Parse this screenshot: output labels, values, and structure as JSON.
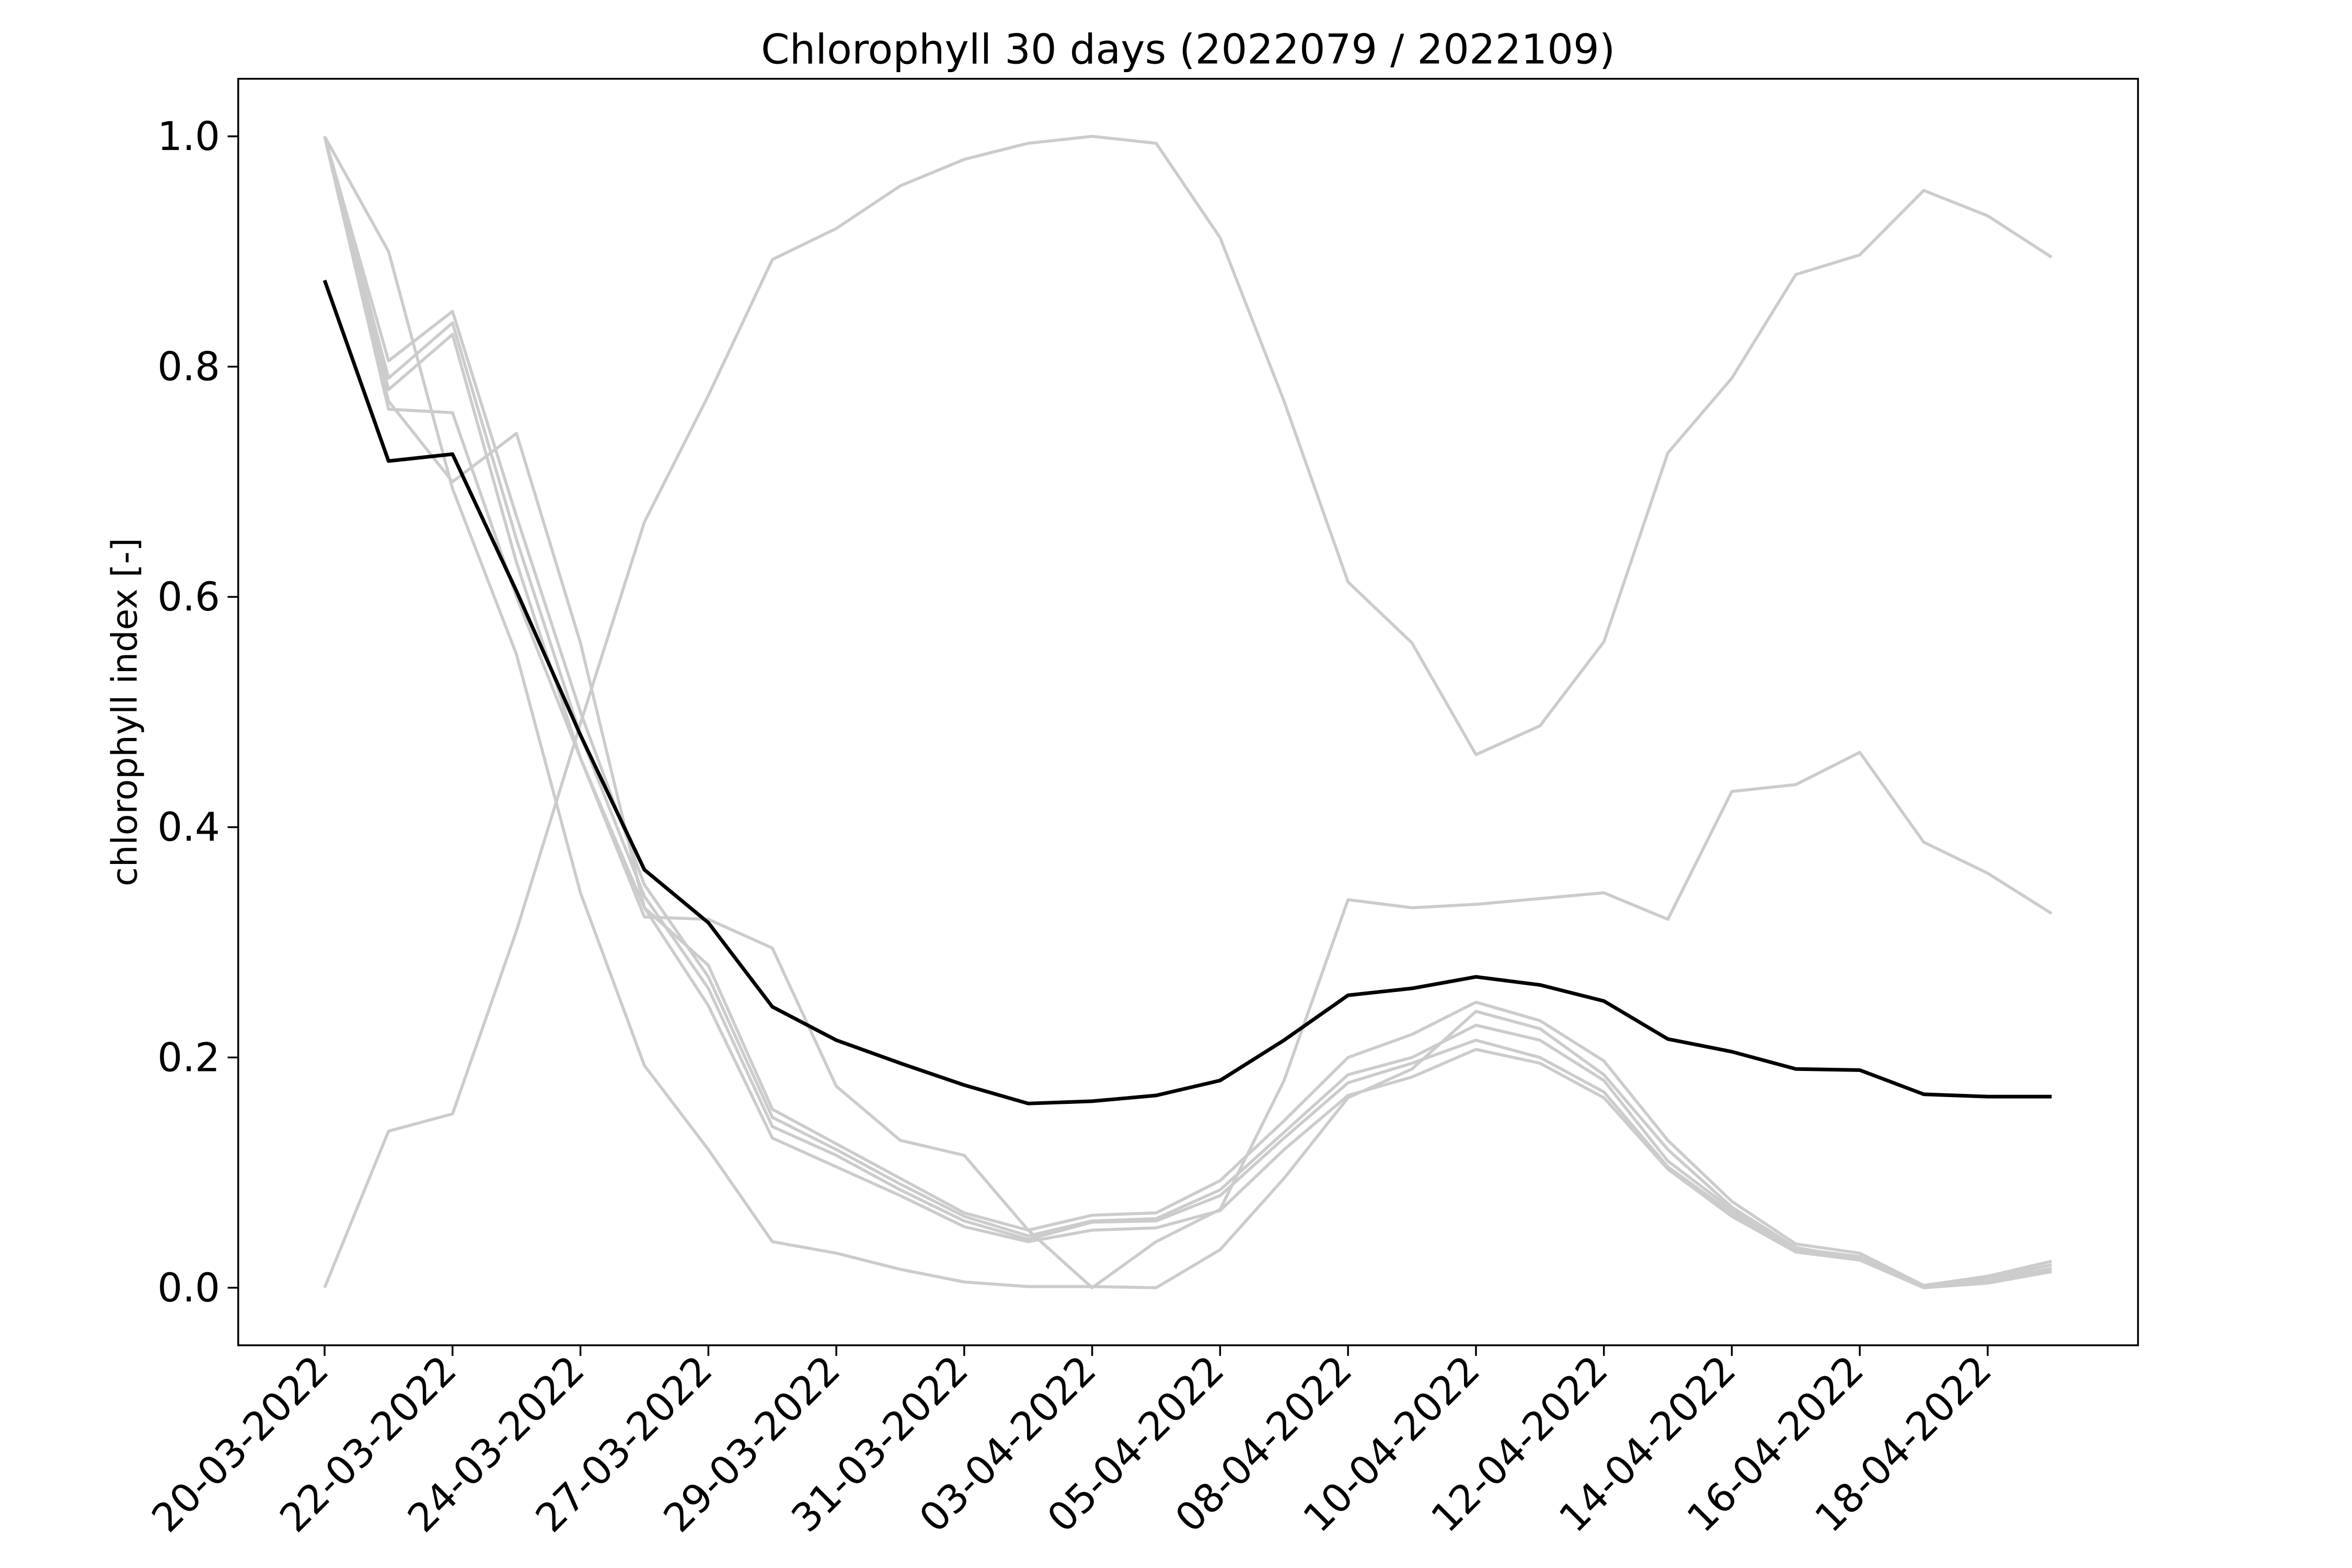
{
  "chart_data": {
    "type": "line",
    "title": "Chlorophyll 30 days (2022079 / 2022109)",
    "y_label": "chlorophyll index [-]",
    "x": [
      0,
      1,
      2,
      3,
      4,
      5,
      6,
      7,
      8,
      9,
      10,
      11,
      12,
      13,
      14,
      15,
      16,
      17,
      18,
      19,
      20,
      21,
      22,
      23,
      24,
      25,
      26,
      27
    ],
    "xlim": [
      -1.35,
      28.35
    ],
    "xticks": [
      {
        "value": 0,
        "label": "20-03-2022"
      },
      {
        "value": 2,
        "label": "22-03-2022"
      },
      {
        "value": 4,
        "label": "24-03-2022"
      },
      {
        "value": 6,
        "label": "27-03-2022"
      },
      {
        "value": 8,
        "label": "29-03-2022"
      },
      {
        "value": 10,
        "label": "31-03-2022"
      },
      {
        "value": 12,
        "label": "03-04-2022"
      },
      {
        "value": 14,
        "label": "05-04-2022"
      },
      {
        "value": 16,
        "label": "08-04-2022"
      },
      {
        "value": 18,
        "label": "10-04-2022"
      },
      {
        "value": 20,
        "label": "12-04-2022"
      },
      {
        "value": 22,
        "label": "14-04-2022"
      },
      {
        "value": 24,
        "label": "16-04-2022"
      },
      {
        "value": 26,
        "label": "18-04-2022"
      }
    ],
    "ylim": [
      -0.05,
      1.05
    ],
    "yticks": [
      {
        "value": 0,
        "label": "0.0"
      },
      {
        "value": 0.2,
        "label": "0.2"
      },
      {
        "value": 0.4,
        "label": "0.4"
      },
      {
        "value": 0.6,
        "label": "0.6"
      },
      {
        "value": 0.8,
        "label": "0.8"
      },
      {
        "value": 1,
        "label": "1.0"
      }
    ],
    "grid": false,
    "series": [
      {
        "color": "#cccccc",
        "values": [
          0,
          0.136,
          0.151,
          0.31,
          0.49,
          0.665,
          0.775,
          0.893,
          0.92,
          0.957,
          0.98,
          0.994,
          1.0,
          0.994,
          0.912,
          0.77,
          0.613,
          0.56,
          0.463,
          0.488,
          0.561,
          0.725,
          0.79,
          0.88,
          0.897,
          0.953,
          0.931,
          0.895
        ]
      },
      {
        "color": "#cccccc",
        "values": [
          1.0,
          0.763,
          0.76,
          0.6,
          0.46,
          0.322,
          0.32,
          0.295,
          0.175,
          0.128,
          0.115,
          0.05,
          0.0,
          0.04,
          0.068,
          0.18,
          0.337,
          0.33,
          0.333,
          0.338,
          0.343,
          0.32,
          0.431,
          0.437,
          0.465,
          0.387,
          0.36,
          0.325
        ]
      },
      {
        "color": "#cccccc",
        "values": [
          1.0,
          0.9,
          0.694,
          0.55,
          0.343,
          0.193,
          0.12,
          0.04,
          0.03,
          0.016,
          0.005,
          0.001,
          0.001,
          0.0,
          0.033,
          0.095,
          0.165,
          0.19,
          0.24,
          0.225,
          0.185,
          0.12,
          0.07,
          0.035,
          0.025,
          0.0,
          0.008,
          0.02
        ]
      },
      {
        "color": "#cccccc",
        "values": [
          1.0,
          0.77,
          0.7,
          0.742,
          0.56,
          0.33,
          0.28,
          0.155,
          0.125,
          0.095,
          0.065,
          0.05,
          0.063,
          0.065,
          0.093,
          0.145,
          0.2,
          0.22,
          0.248,
          0.232,
          0.197,
          0.128,
          0.075,
          0.038,
          0.03,
          0.002,
          0.01,
          0.023
        ]
      },
      {
        "color": "#cccccc",
        "values": [
          1.0,
          0.805,
          0.848,
          0.67,
          0.5,
          0.35,
          0.27,
          0.148,
          0.12,
          0.09,
          0.062,
          0.045,
          0.058,
          0.06,
          0.085,
          0.135,
          0.185,
          0.2,
          0.228,
          0.215,
          0.18,
          0.11,
          0.068,
          0.034,
          0.027,
          0.001,
          0.006,
          0.017
        ]
      },
      {
        "color": "#cccccc",
        "values": [
          1.0,
          0.79,
          0.838,
          0.65,
          0.48,
          0.34,
          0.26,
          0.14,
          0.115,
          0.085,
          0.058,
          0.042,
          0.057,
          0.058,
          0.08,
          0.13,
          0.178,
          0.195,
          0.215,
          0.2,
          0.17,
          0.105,
          0.065,
          0.033,
          0.025,
          0.0,
          0.005,
          0.015
        ]
      },
      {
        "color": "#cccccc",
        "values": [
          1.0,
          0.78,
          0.828,
          0.63,
          0.46,
          0.33,
          0.245,
          0.13,
          0.105,
          0.08,
          0.053,
          0.04,
          0.05,
          0.052,
          0.067,
          0.12,
          0.167,
          0.183,
          0.207,
          0.195,
          0.165,
          0.103,
          0.062,
          0.031,
          0.024,
          0.0,
          0.004,
          0.014
        ]
      },
      {
        "color": "#000000",
        "values": [
          0.875,
          0.718,
          0.724,
          0.605,
          0.48,
          0.363,
          0.317,
          0.244,
          0.215,
          0.195,
          0.176,
          0.16,
          0.162,
          0.167,
          0.18,
          0.215,
          0.254,
          0.26,
          0.27,
          0.263,
          0.249,
          0.216,
          0.205,
          0.19,
          0.189,
          0.168,
          0.166,
          0.166
        ]
      }
    ]
  }
}
